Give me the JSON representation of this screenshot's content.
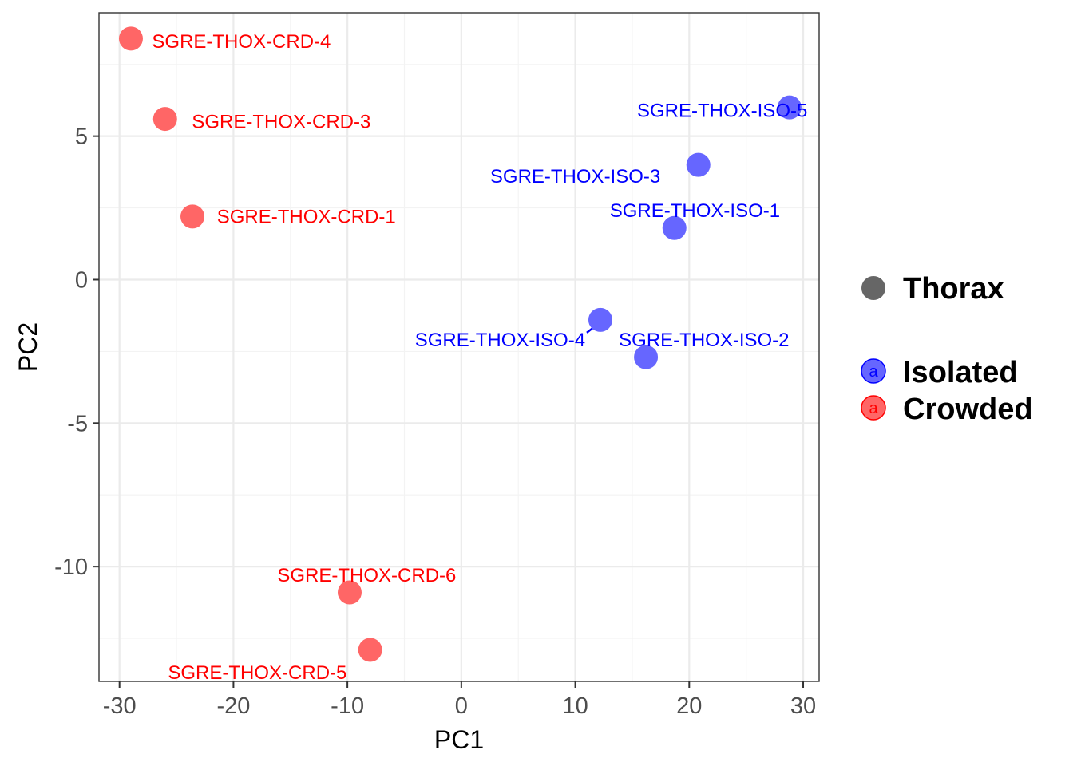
{
  "chart_data": {
    "type": "scatter",
    "xlabel": "PC1",
    "ylabel": "PC2",
    "xlim": [
      -31.8,
      31.4
    ],
    "ylim": [
      -14.0,
      9.3
    ],
    "x_ticks": [
      -30,
      -20,
      -10,
      0,
      10,
      20,
      30
    ],
    "x_tick_labels": [
      "-30",
      "-20",
      "-10",
      "0",
      "10",
      "20",
      "30"
    ],
    "y_ticks": [
      -10,
      -5,
      0,
      5
    ],
    "y_tick_labels": [
      "-10",
      "-5",
      "0",
      "5"
    ],
    "grid": true,
    "legend": {
      "position": "right",
      "shape_title": "Thorax",
      "entries": [
        {
          "name": "Isolated",
          "key_text": "a",
          "color": "#0000ff"
        },
        {
          "name": "Crowded",
          "key_text": "a",
          "color": "#ff0000"
        }
      ]
    },
    "series": [
      {
        "name": "Isolated",
        "color": "#0000ff",
        "point_color": "#6666ff",
        "points": [
          {
            "label": "SGRE-THOX-ISO-5",
            "x": 28.8,
            "y": 6.0,
            "lx": 22.9,
            "ly": 5.9
          },
          {
            "label": "SGRE-THOX-ISO-3",
            "x": 20.8,
            "y": 4.0,
            "lx": 10.0,
            "ly": 3.6
          },
          {
            "label": "SGRE-THOX-ISO-1",
            "x": 18.7,
            "y": 1.8,
            "lx": 20.5,
            "ly": 2.4
          },
          {
            "label": "SGRE-THOX-ISO-4",
            "x": 12.2,
            "y": -1.4,
            "lx": 3.4,
            "ly": -2.1
          },
          {
            "label": "SGRE-THOX-ISO-2",
            "x": 16.2,
            "y": -2.7,
            "lx": 21.3,
            "ly": -2.1
          }
        ]
      },
      {
        "name": "Crowded",
        "color": "#ff0000",
        "point_color": "#ff6666",
        "points": [
          {
            "label": "SGRE-THOX-CRD-4",
            "x": -29.0,
            "y": 8.4,
            "lx": -19.3,
            "ly": 8.3
          },
          {
            "label": "SGRE-THOX-CRD-3",
            "x": -26.0,
            "y": 5.6,
            "lx": -15.8,
            "ly": 5.5
          },
          {
            "label": "SGRE-THOX-CRD-1",
            "x": -23.6,
            "y": 2.2,
            "lx": -13.6,
            "ly": 2.2
          },
          {
            "label": "SGRE-THOX-CRD-6",
            "x": -9.8,
            "y": -10.9,
            "lx": -8.3,
            "ly": -10.3
          },
          {
            "label": "SGRE-THOX-CRD-5",
            "x": -8.0,
            "y": -12.9,
            "lx": -17.9,
            "ly": -13.7
          }
        ]
      }
    ]
  }
}
